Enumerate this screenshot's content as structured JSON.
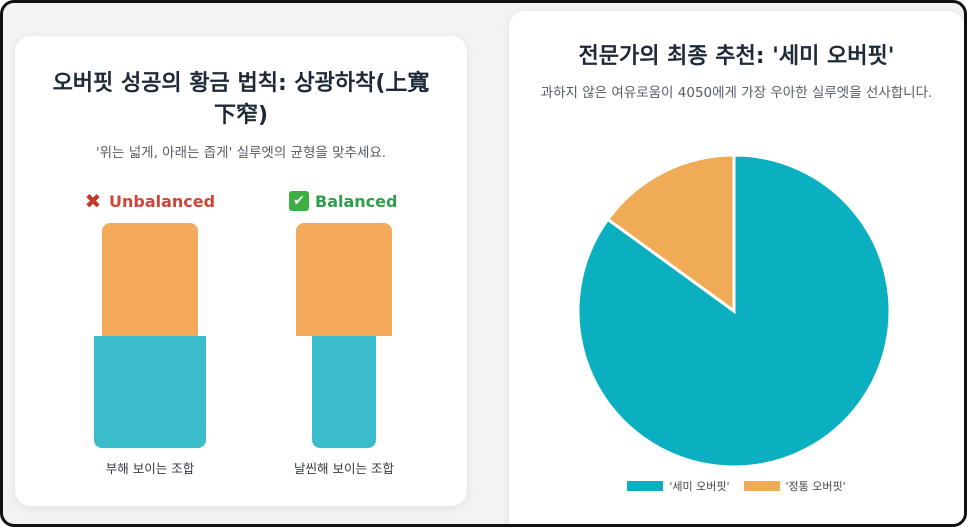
{
  "left": {
    "title": "오버핏 성공의 황금 법칙: 상광하착(上寬下窄)",
    "subtitle": "'위는 넓게, 아래는 좁게' 실루엣의 균형을 맞추세요.",
    "unbalanced": {
      "label": "Unbalanced",
      "caption": "부해 보이는 조합"
    },
    "balanced": {
      "label": "Balanced",
      "caption": "날씬해 보이는 조합"
    },
    "colors": {
      "top": "#f4a95a",
      "bottom": "#3bbccb",
      "bad": "#d0453a",
      "good": "#2e9e4a"
    }
  },
  "right": {
    "title": "전문가의 최종 추천: '세미 오버핏'",
    "subtitle": "과하지 않은 여유로움이 4050에게 가장 우아한 실루엣을 선사합니다."
  },
  "chart_data": {
    "type": "pie",
    "title": "전문가의 최종 추천: '세미 오버핏'",
    "categories": [
      "'세미 오버핏'",
      "'정통 오버핏'"
    ],
    "values": [
      85,
      15
    ],
    "colors": [
      "#0aafc0",
      "#f0ab57"
    ],
    "legend": "bottom"
  }
}
